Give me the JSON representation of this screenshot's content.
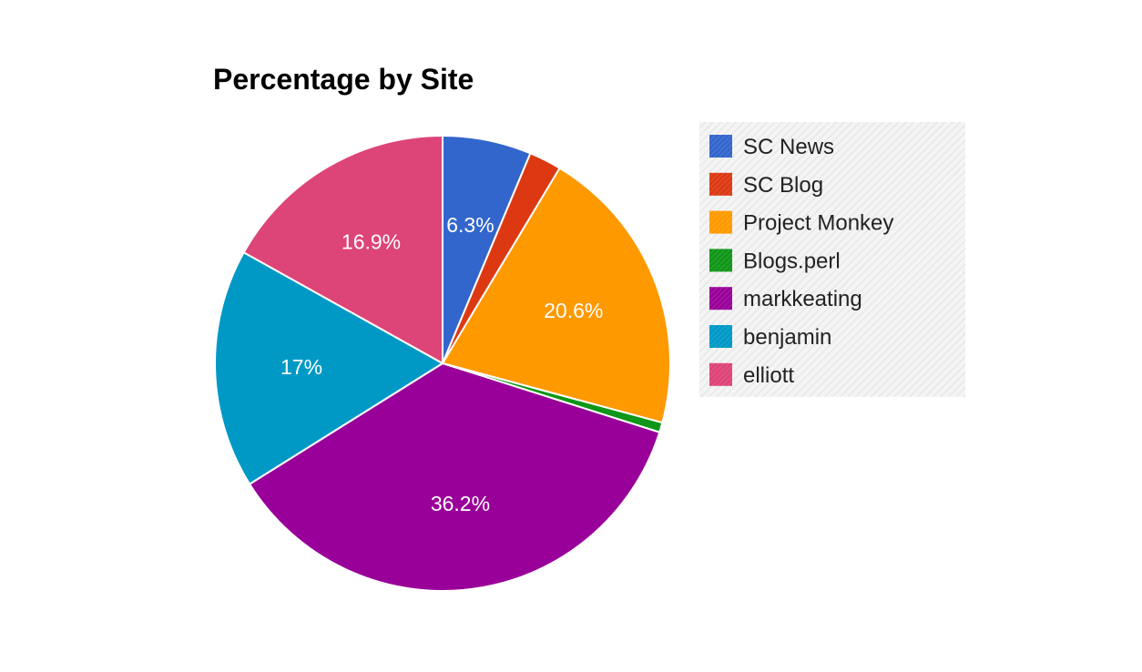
{
  "chart_data": {
    "type": "pie",
    "title": "Percentage by Site",
    "legend_position": "right",
    "start_angle_deg": 0,
    "slices": [
      {
        "name": "SC News",
        "value": 6.3,
        "label": "6.3%",
        "color": "#3366cc"
      },
      {
        "name": "SC Blog",
        "value": 2.3,
        "label": "",
        "color": "#dc3912"
      },
      {
        "name": "Project Monkey",
        "value": 20.6,
        "label": "20.6%",
        "color": "#ff9900"
      },
      {
        "name": "Blogs.perl",
        "value": 0.7,
        "label": "",
        "color": "#109618"
      },
      {
        "name": "markkeating",
        "value": 36.2,
        "label": "36.2%",
        "color": "#990099"
      },
      {
        "name": "benjamin",
        "value": 17,
        "label": "17%",
        "color": "#0099c6"
      },
      {
        "name": "elliott",
        "value": 16.9,
        "label": "16.9%",
        "color": "#dd4477"
      }
    ]
  }
}
